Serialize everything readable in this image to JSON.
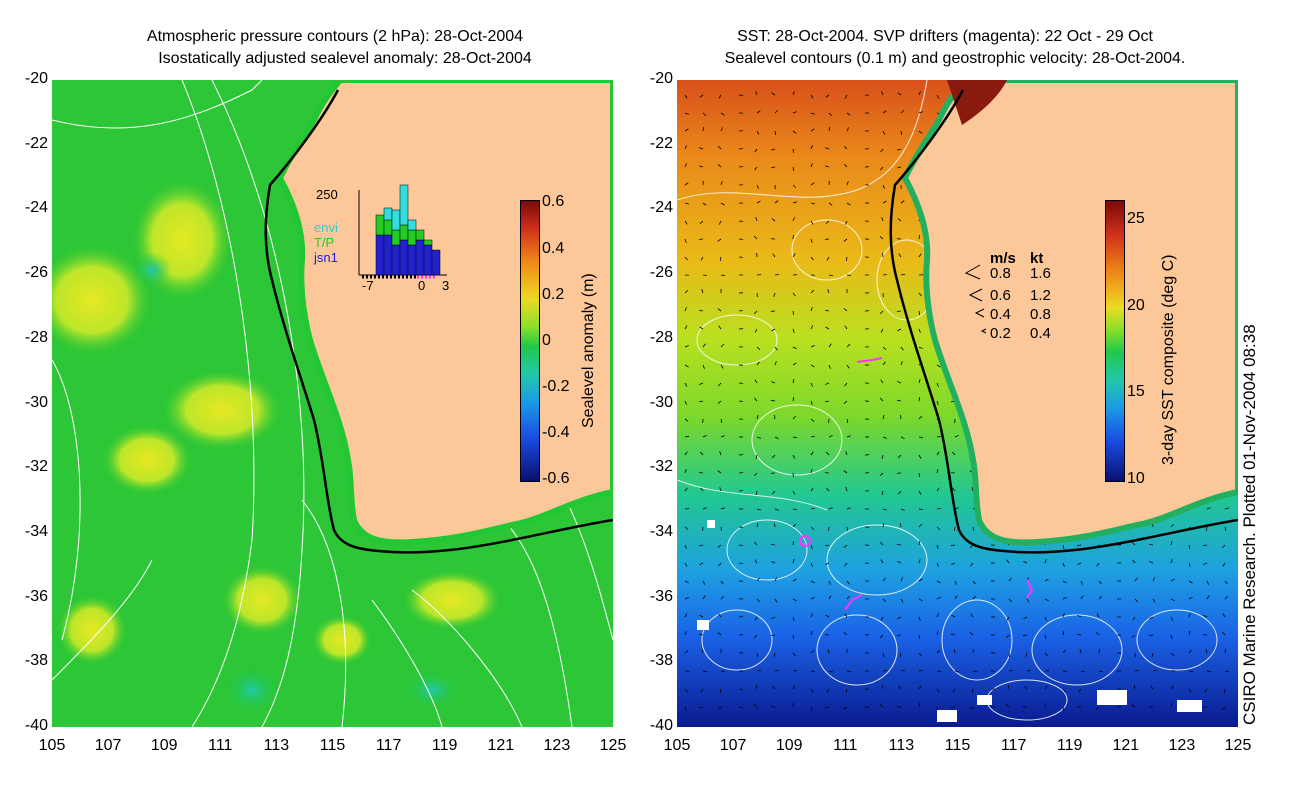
{
  "left_panel": {
    "title_line1": "Atmospheric pressure contours (2 hPa): 28-Oct-2004",
    "title_line2": "Isostatically adjusted sealevel anomaly: 28-Oct-2004",
    "colorbar_label": "Sealevel anomaly (m)",
    "colorbar_ticks": [
      "0.6",
      "0.4",
      "0.2",
      "0",
      "-0.2",
      "-0.4",
      "-0.6"
    ],
    "inset": {
      "ymax_label": "250",
      "x_labels": [
        "-7",
        "0",
        "3"
      ],
      "legend": [
        {
          "label": "envi",
          "color": "#33cccc"
        },
        {
          "label": "T/P",
          "color": "#22cc22"
        },
        {
          "label": "jsn1",
          "color": "#2222cc"
        }
      ]
    }
  },
  "right_panel": {
    "title_line1": "SST: 28-Oct-2004. SVP drifters (magenta): 22 Oct - 29 Oct",
    "title_line2": "Sealevel contours (0.1 m) and geostrophic velocity: 28-Oct-2004.",
    "colorbar_label": "3-day SST composite (deg C)",
    "colorbar_ticks": [
      "25",
      "20",
      "15",
      "10"
    ],
    "velocity_legend": {
      "header_ms": "m/s",
      "header_kt": "kt",
      "rows": [
        {
          "ms": "0.8",
          "kt": "1.6"
        },
        {
          "ms": "0.6",
          "kt": "1.2"
        },
        {
          "ms": "0.4",
          "kt": "0.8"
        },
        {
          "ms": "0.2",
          "kt": "0.4"
        }
      ]
    }
  },
  "axes": {
    "y_ticks": [
      "-20",
      "-22",
      "-24",
      "-26",
      "-28",
      "-30",
      "-32",
      "-34",
      "-36",
      "-38",
      "-40"
    ],
    "x_ticks": [
      "105",
      "107",
      "109",
      "111",
      "113",
      "115",
      "117",
      "119",
      "121",
      "123",
      "125"
    ]
  },
  "credit": "CSIRO Marine Research. Plotted 01-Nov-2004 08:38",
  "colors": {
    "land": "#fcc89a",
    "ocean_green": "#22c833",
    "coast_line": "#000000"
  }
}
